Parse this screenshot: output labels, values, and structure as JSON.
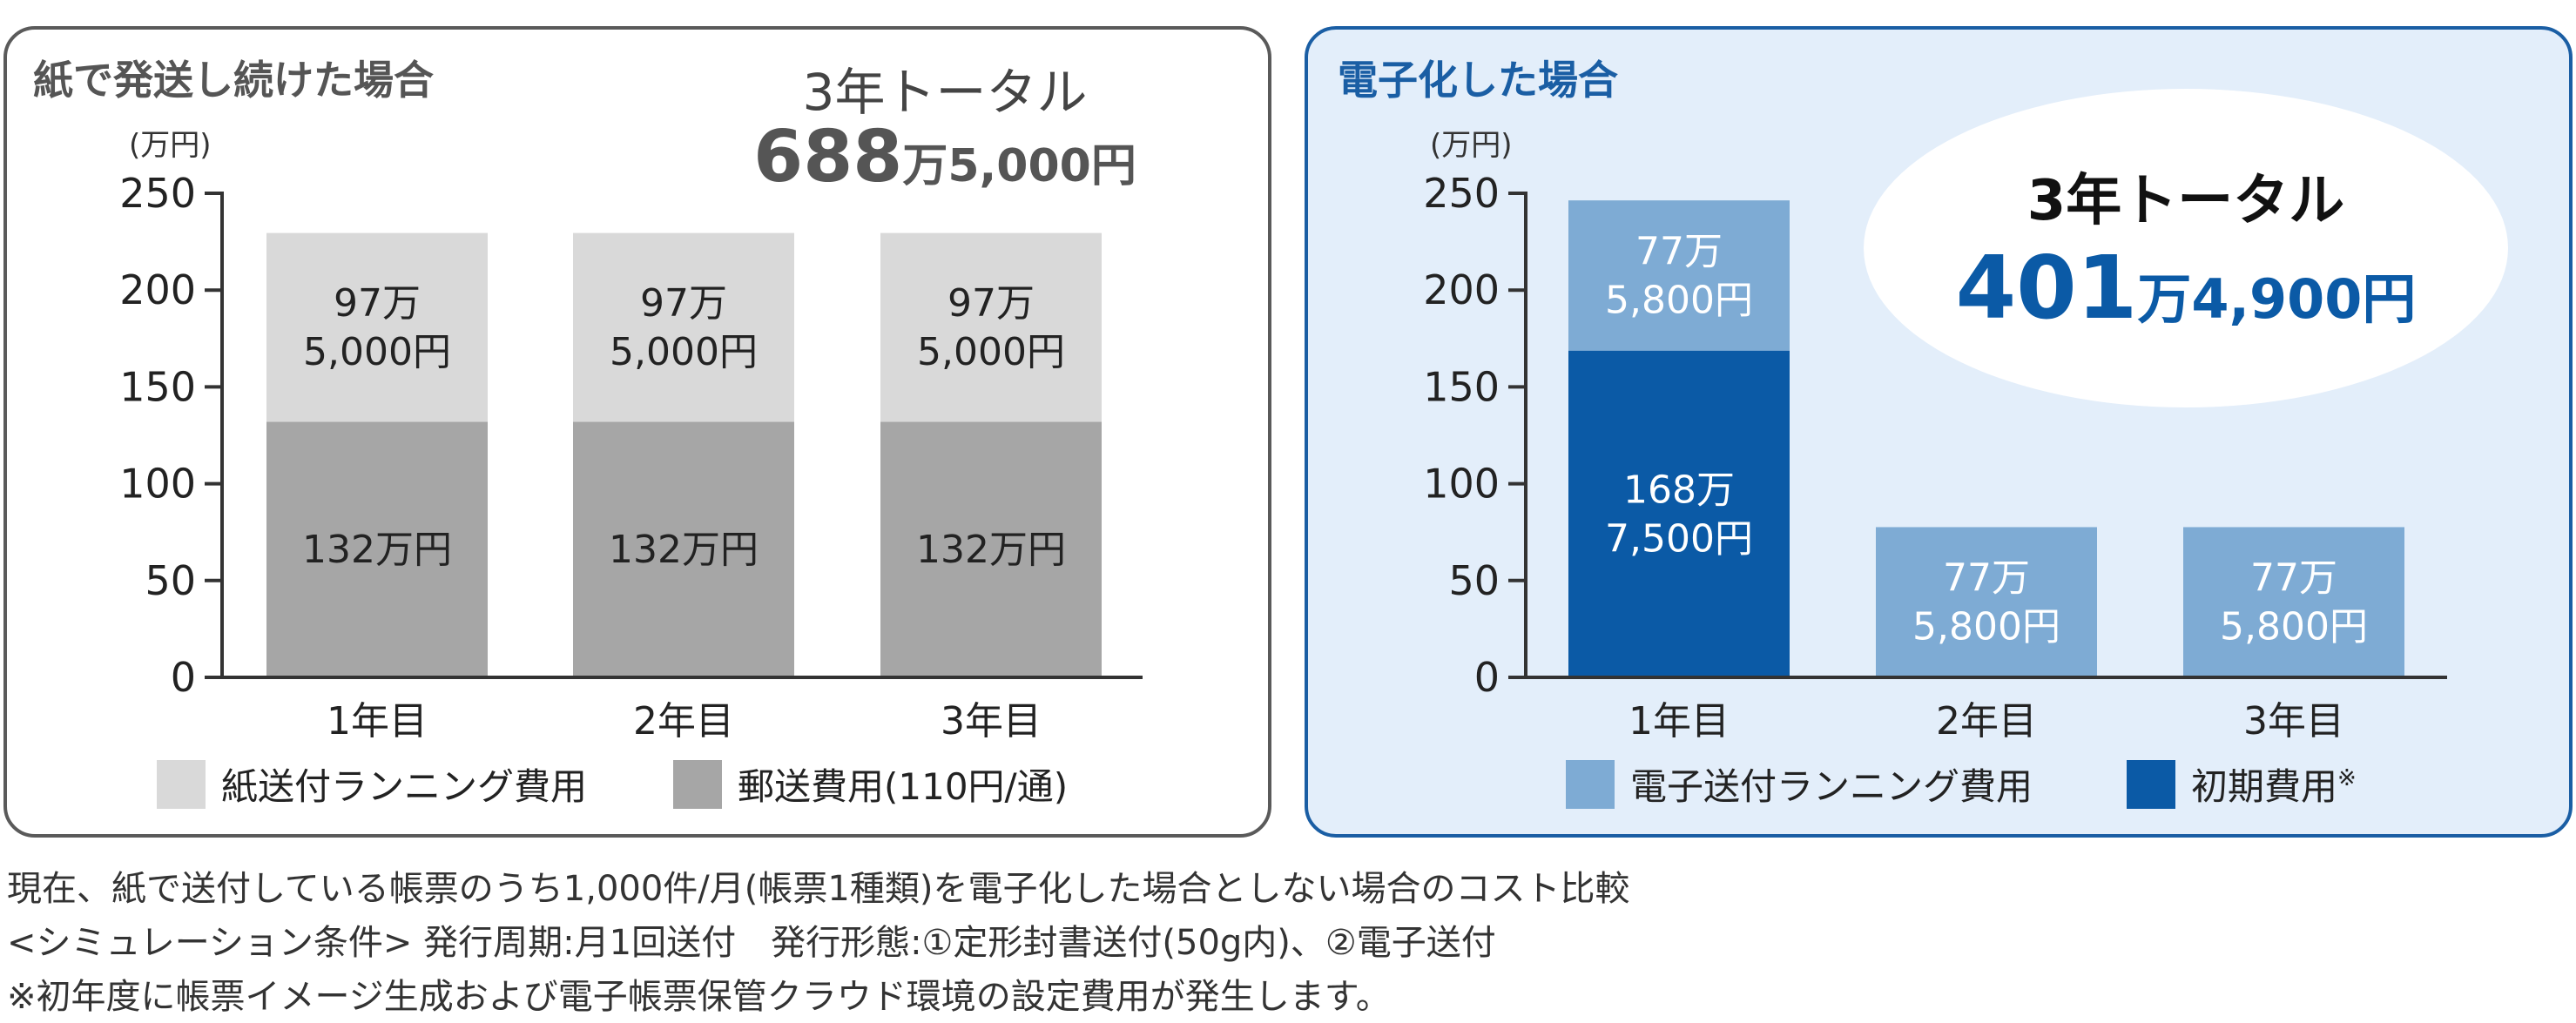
{
  "paper": {
    "title": "紙で発送し続けた場合",
    "total_label": "3年トータル",
    "total_big": "688",
    "total_rest": "万5,000円",
    "unit": "(万円)"
  },
  "digital": {
    "title": "電子化した場合",
    "total_label": "3年トータル",
    "total_big": "401",
    "total_rest": "万4,900円",
    "unit": "(万円)"
  },
  "colors": {
    "paper_running": "#d9d9d9",
    "postage": "#a6a6a6",
    "digital_running": "#7eabd4",
    "initial": "#0b5aa6",
    "digital_accent": "#1a5ea4"
  },
  "chart_data": [
    {
      "type": "bar",
      "stacked": true,
      "categories": [
        "1年目",
        "2年目",
        "3年目"
      ],
      "ylim": [
        0,
        250
      ],
      "yticks": [
        0,
        50,
        100,
        150,
        200,
        250
      ],
      "series": [
        {
          "name": "郵送費用(110円/通)",
          "values": [
            132,
            132,
            132
          ],
          "labels": [
            "132万円",
            "132万円",
            "132万円"
          ]
        },
        {
          "name": "紙送付ランニング費用",
          "values": [
            97.5,
            97.5,
            97.5
          ],
          "labels": [
            "97万\n5,000円",
            "97万\n5,000円",
            "97万\n5,000円"
          ]
        }
      ],
      "legend": [
        "紙送付ランニング費用",
        "郵送費用(110円/通)"
      ],
      "legend_position": "bottom"
    },
    {
      "type": "bar",
      "stacked": true,
      "categories": [
        "1年目",
        "2年目",
        "3年目"
      ],
      "ylim": [
        0,
        250
      ],
      "yticks": [
        0,
        50,
        100,
        150,
        200,
        250
      ],
      "series": [
        {
          "name": "初期費用※",
          "values": [
            168.75,
            0,
            0
          ],
          "labels": [
            "168万\n7,500円",
            "",
            ""
          ]
        },
        {
          "name": "電子送付ランニング費用",
          "values": [
            77.58,
            77.58,
            77.58
          ],
          "labels": [
            "77万\n5,800円",
            "77万\n5,800円",
            "77万\n5,800円"
          ]
        }
      ],
      "legend": [
        "電子送付ランニング費用",
        "初期費用※"
      ],
      "legend_position": "bottom"
    }
  ],
  "footnotes": [
    "現在、紙で送付している帳票のうち1,000件/月(帳票1種類)を電子化した場合としない場合のコスト比較",
    "<シミュレーション条件> 発行周期:月1回送付　発行形態:①定形封書送付(50g内)、②電子送付",
    "※初年度に帳票イメージ生成および電子帳票保管クラウド環境の設定費用が発生します。"
  ]
}
